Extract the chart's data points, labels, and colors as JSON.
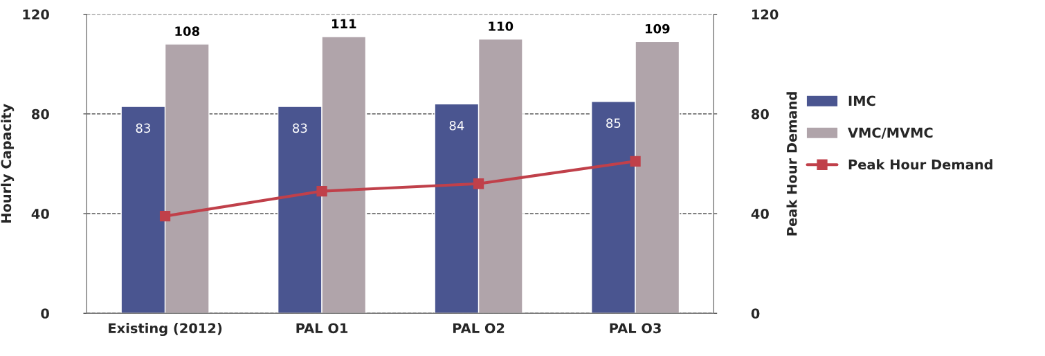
{
  "chart_data": {
    "type": "bar",
    "ylabel": "Hourly Capacity",
    "y2label": "Peak Hour Demand",
    "categories": [
      "Existing (2012)",
      "PAL O1",
      "PAL O2",
      "PAL O3"
    ],
    "series": [
      {
        "name": "IMC",
        "color": "#4a5590",
        "values": [
          83,
          83,
          84,
          85
        ],
        "value_labels": [
          "83",
          "83",
          "84",
          "85"
        ]
      },
      {
        "name": "VMC/MVMC",
        "color": "#b0a4aa",
        "values": [
          108,
          111,
          110,
          109
        ],
        "value_labels": [
          "108",
          "111",
          "110",
          "109"
        ]
      },
      {
        "name": "Peak Hour Demand",
        "type": "line",
        "color": "#c0404a",
        "marker": "square",
        "values": [
          39,
          49,
          52,
          61
        ]
      }
    ],
    "ylim": [
      0,
      120
    ],
    "yticks": [
      0,
      40,
      80,
      120
    ],
    "y2lim": [
      0,
      120
    ],
    "y2ticks": [
      0,
      40,
      80,
      120
    ],
    "grid": "y",
    "legend": "right"
  }
}
